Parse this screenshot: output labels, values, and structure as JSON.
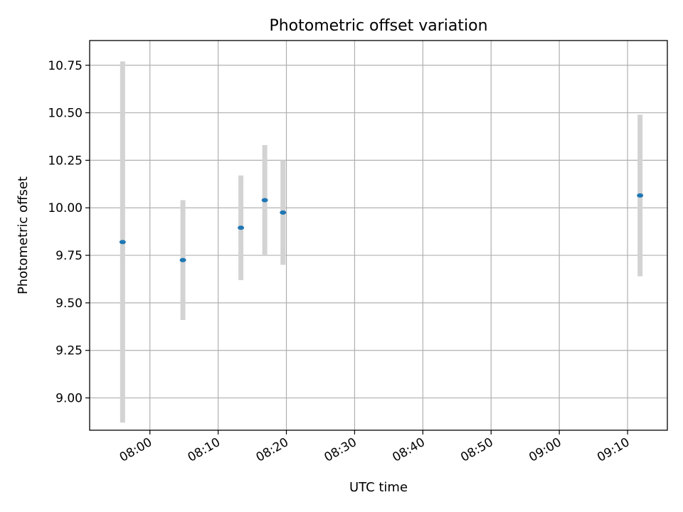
{
  "chart_data": {
    "type": "scatter",
    "title": "Photometric offset variation",
    "xlabel": "UTC time",
    "ylabel": "Photometric offset",
    "grid": true,
    "xlim": [
      "07:51:10",
      "09:15:50"
    ],
    "ylim": [
      8.83,
      10.88
    ],
    "x_ticks": [
      "08:00",
      "08:10",
      "08:20",
      "08:30",
      "08:40",
      "08:50",
      "09:00",
      "09:10"
    ],
    "y_ticks": [
      "9.00",
      "9.25",
      "9.50",
      "9.75",
      "10.00",
      "10.25",
      "10.50",
      "10.75"
    ],
    "points": [
      {
        "x": "07:56:00",
        "y": 9.82,
        "err_low": 8.87,
        "err_high": 10.77
      },
      {
        "x": "08:04:50",
        "y": 9.725,
        "err_low": 9.41,
        "err_high": 10.04
      },
      {
        "x": "08:13:20",
        "y": 9.895,
        "err_low": 9.62,
        "err_high": 10.17
      },
      {
        "x": "08:16:50",
        "y": 10.04,
        "err_low": 9.75,
        "err_high": 10.33
      },
      {
        "x": "08:19:30",
        "y": 9.975,
        "err_low": 9.7,
        "err_high": 10.25
      },
      {
        "x": "09:11:50",
        "y": 10.065,
        "err_low": 9.64,
        "err_high": 10.49
      }
    ],
    "colors": {
      "marker": "#1f77b4",
      "errorbar": "#d3d3d3",
      "grid": "#b0b0b0",
      "axes": "#000000"
    }
  }
}
